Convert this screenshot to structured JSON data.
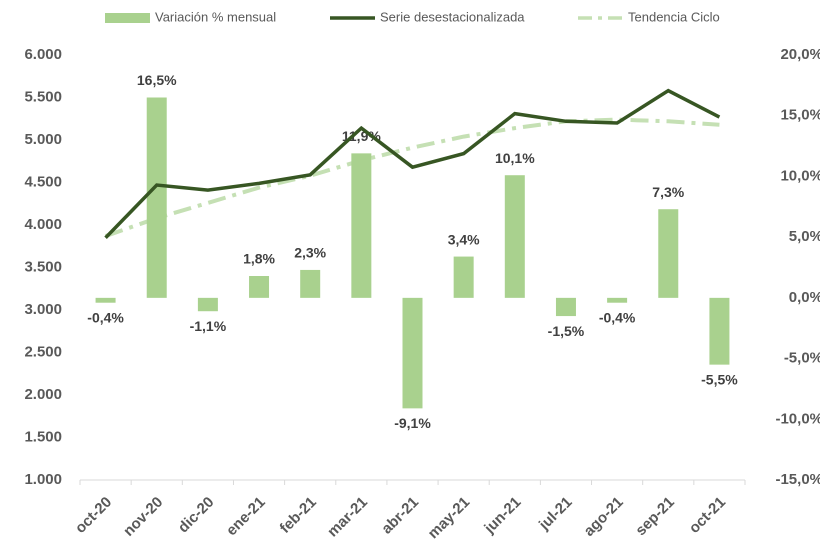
{
  "chart_data": {
    "type": "bar-line",
    "categories": [
      "oct-20",
      "nov-20",
      "dic-20",
      "ene-21",
      "feb-21",
      "mar-21",
      "abr-21",
      "may-21",
      "jun-21",
      "jul-21",
      "ago-21",
      "sep-21",
      "oct-21"
    ],
    "series": [
      {
        "name": "Variación % mensual",
        "type": "bar",
        "axis": "y2",
        "color": "#a9d18e",
        "values": [
          -0.4,
          16.5,
          -1.1,
          1.8,
          2.3,
          11.9,
          -9.1,
          3.4,
          10.1,
          -1.5,
          -0.4,
          7.3,
          -5.5
        ],
        "value_labels": [
          "-0,4%",
          "16,5%",
          "-1,1%",
          "1,8%",
          "2,3%",
          "11,9%",
          "-9,1%",
          "3,4%",
          "10,1%",
          "-1,5%",
          "-0,4%",
          "7,3%",
          "-5,5%"
        ]
      },
      {
        "name": "Serie desestacionalizada",
        "type": "line",
        "color": "#375623",
        "values": [
          3850,
          4470,
          4410,
          4490,
          4590,
          5140,
          4680,
          4840,
          5310,
          5220,
          5200,
          5580,
          5270
        ]
      },
      {
        "name": "Tendencia Ciclo",
        "type": "dashdot",
        "color": "#c5e0b4",
        "values": [
          3870,
          4080,
          4260,
          4440,
          4580,
          4760,
          4910,
          5040,
          5140,
          5220,
          5240,
          5220,
          5180
        ]
      }
    ],
    "ylim": [
      1000,
      6000
    ],
    "yticks": [
      {
        "value": 1000,
        "label": "1.000"
      },
      {
        "value": 1500,
        "label": "1.500"
      },
      {
        "value": 2000,
        "label": "2.000"
      },
      {
        "value": 2500,
        "label": "2.500"
      },
      {
        "value": 3000,
        "label": "3.000"
      },
      {
        "value": 3500,
        "label": "3.500"
      },
      {
        "value": 4000,
        "label": "4.000"
      },
      {
        "value": 4500,
        "label": "4.500"
      },
      {
        "value": 5000,
        "label": "5.000"
      },
      {
        "value": 5500,
        "label": "5.500"
      },
      {
        "value": 6000,
        "label": "6.000"
      }
    ],
    "y2lim": [
      -15,
      20
    ],
    "y2ticks": [
      {
        "value": -15,
        "label": "-15,0%"
      },
      {
        "value": -10,
        "label": "-10,0%"
      },
      {
        "value": -5,
        "label": "-5,0%"
      },
      {
        "value": 0,
        "label": "0,0%"
      },
      {
        "value": 5,
        "label": "5,0%"
      },
      {
        "value": 10,
        "label": "10,0%"
      },
      {
        "value": 15,
        "label": "15,0%"
      },
      {
        "value": 20,
        "label": "20,0%"
      }
    ],
    "legend": "top"
  }
}
